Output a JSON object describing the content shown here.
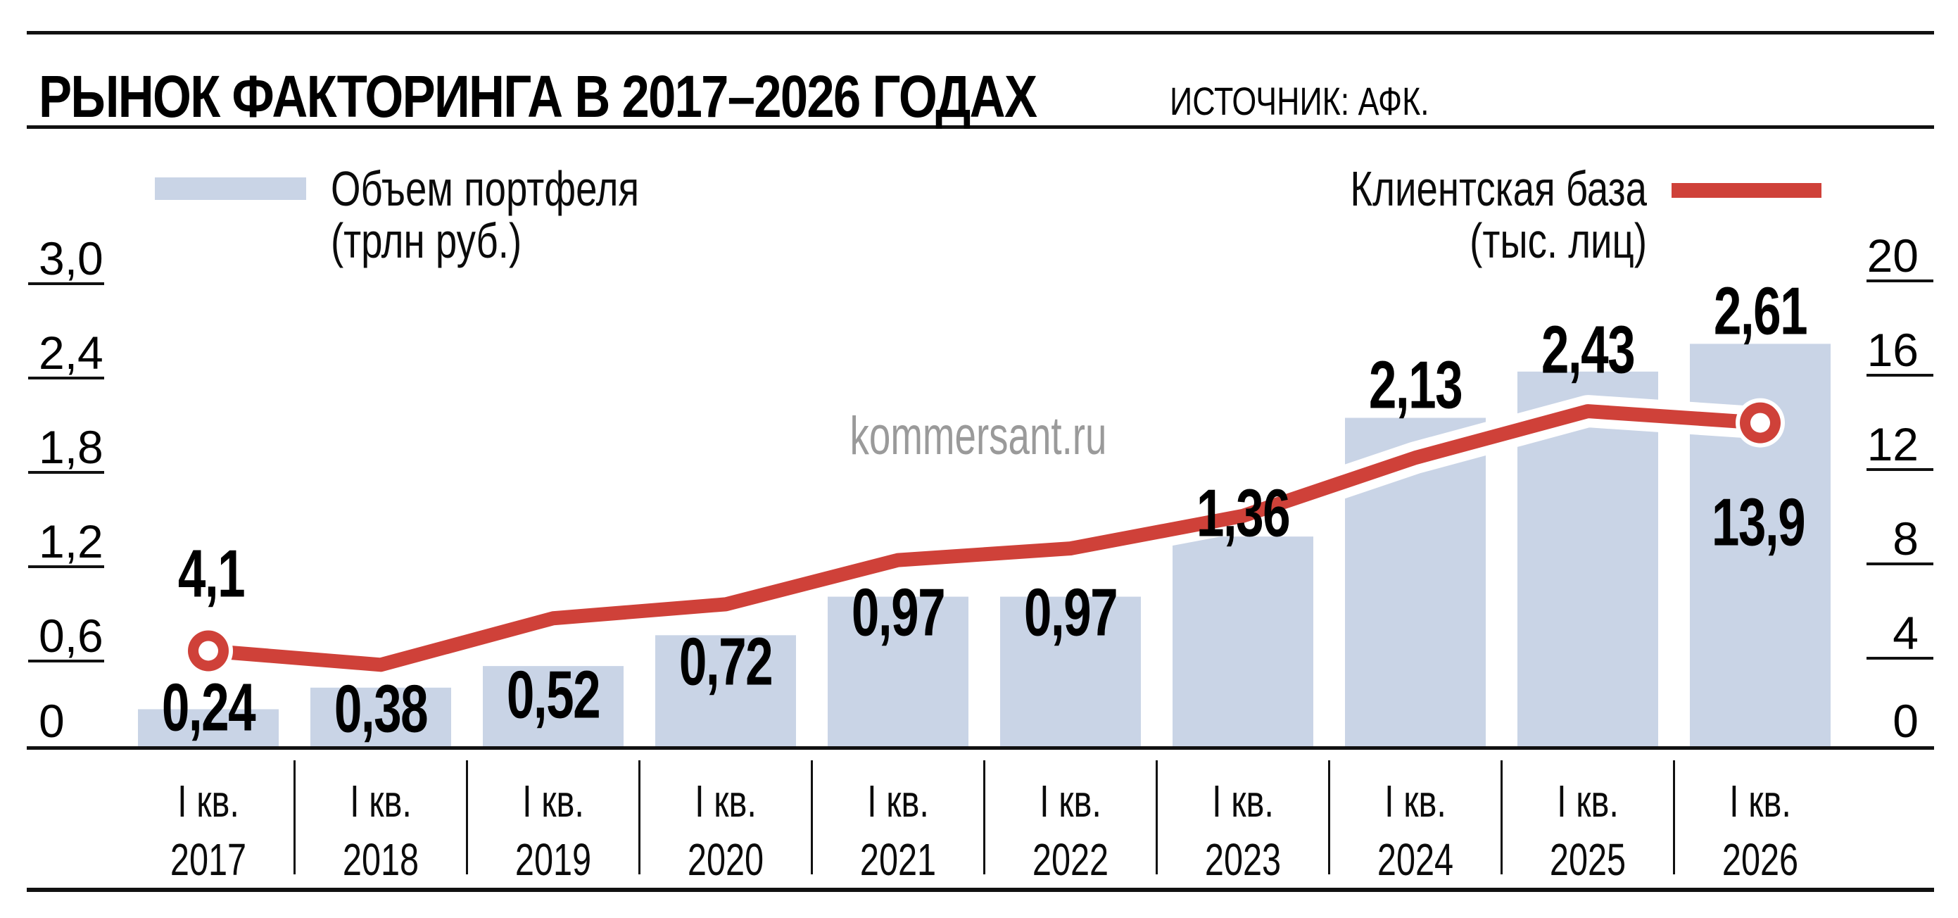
{
  "header": {
    "title": "РЫНОК ФАКТОРИНГА В 2017–2026 ГОДАХ",
    "source": "ИСТОЧНИК: АФК."
  },
  "watermark": "kommersant.ru",
  "legend": {
    "bars_line1": "Объем портфеля",
    "bars_line2": "(трлн руб.)",
    "line_line1": "Клиентская база",
    "line_line2": "(тыс. лиц)"
  },
  "colors": {
    "bar": "#c9d4e6",
    "line": "#cf4139",
    "text": "#000000",
    "watermark": "#9a9a9a"
  },
  "chart_data": {
    "type": "bar+line",
    "category_prefix": "I кв.",
    "years": [
      "2017",
      "2018",
      "2019",
      "2020",
      "2021",
      "2022",
      "2023",
      "2024",
      "2025",
      "2026"
    ],
    "series": [
      {
        "name": "Объем портфеля (трлн руб.)",
        "type": "bar",
        "axis": "left",
        "values": [
          0.24,
          0.38,
          0.52,
          0.72,
          0.97,
          0.97,
          1.36,
          2.13,
          2.43,
          2.61
        ],
        "labels": [
          "0,24",
          "0,38",
          "0,52",
          "0,72",
          "0,97",
          "0,97",
          "1,36",
          "2,13",
          "2,43",
          "2,61"
        ]
      },
      {
        "name": "Клиентская база (тыс. лиц)",
        "type": "line",
        "axis": "right",
        "values": [
          4.1,
          3.5,
          5.5,
          6.1,
          8.0,
          8.5,
          9.9,
          12.4,
          14.4,
          13.9
        ],
        "first_label": "4,1",
        "last_label": "13,9"
      }
    ],
    "left_axis": {
      "ticks": [
        "3,0",
        "2,4",
        "1,8",
        "1,2",
        "0,6",
        "0"
      ],
      "min": 0,
      "max": 3.0
    },
    "right_axis": {
      "ticks": [
        "20",
        "16",
        "12",
        "8",
        "4",
        "0"
      ],
      "min": 0,
      "max": 20
    },
    "layout_hints": {
      "legend_position": "top",
      "grid": "off",
      "bar_label_center_y": [
        1003,
        1005,
        985,
        938,
        868,
        868,
        727,
        545,
        495,
        440
      ],
      "line_first_label_pos": [
        300,
        813
      ],
      "line_last_label_pos": [
        2498,
        740
      ]
    }
  }
}
